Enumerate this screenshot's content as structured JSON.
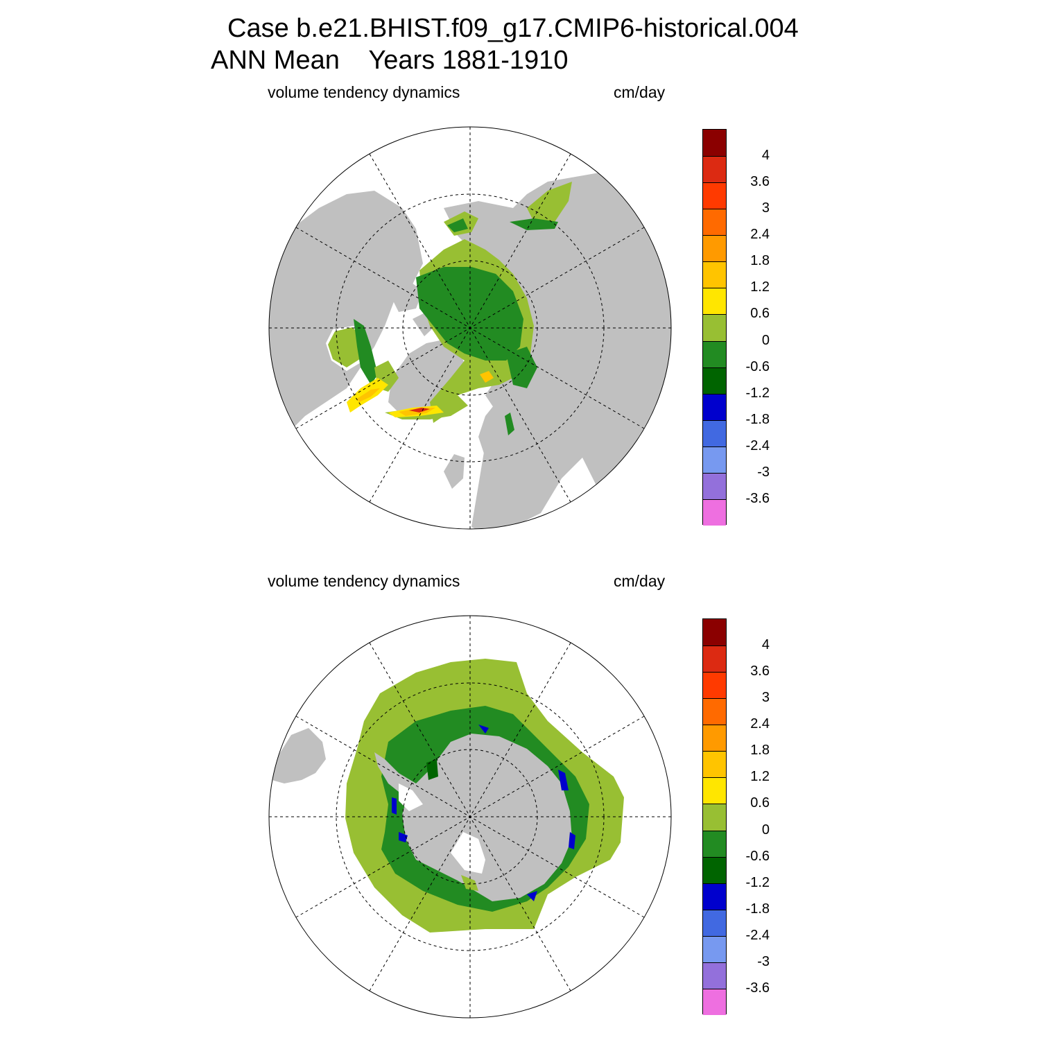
{
  "title": {
    "line1": "Case b.e21.BHIST.f09_g17.CMIP6-historical.004",
    "line2": "ANN Mean    Years 1881-1910"
  },
  "panels": [
    {
      "id": "north",
      "variable": "volume tendency dynamics",
      "units": "cm/day"
    },
    {
      "id": "south",
      "variable": "volume tendency dynamics",
      "units": "cm/day"
    }
  ],
  "colorbar": {
    "labels": [
      "4",
      "3.6",
      "3",
      "2.4",
      "1.8",
      "1.2",
      "0.6",
      "0",
      "-0.6",
      "-1.2",
      "-1.8",
      "-2.4",
      "-3",
      "-3.6"
    ],
    "colors": [
      "#8b0000",
      "#dc2a12",
      "#ff3a00",
      "#ff6a00",
      "#ff9a00",
      "#ffc400",
      "#ffe600",
      "#98bf33",
      "#228b22",
      "#006400",
      "#0000cd",
      "#4169e1",
      "#7799f0",
      "#9370db",
      "#ee6fe0"
    ]
  },
  "colors": {
    "land": "#c0c0c0",
    "ice_low_positive": "#98bf33",
    "ice_low_negative": "#228b22",
    "ice_more_negative": "#006400",
    "ice_strong_negative": "#0000cd",
    "ice_strong_positive_1": "#ffe600",
    "ice_strong_positive_2": "#ffc400",
    "ice_strong_positive_3": "#dc2a12"
  }
}
